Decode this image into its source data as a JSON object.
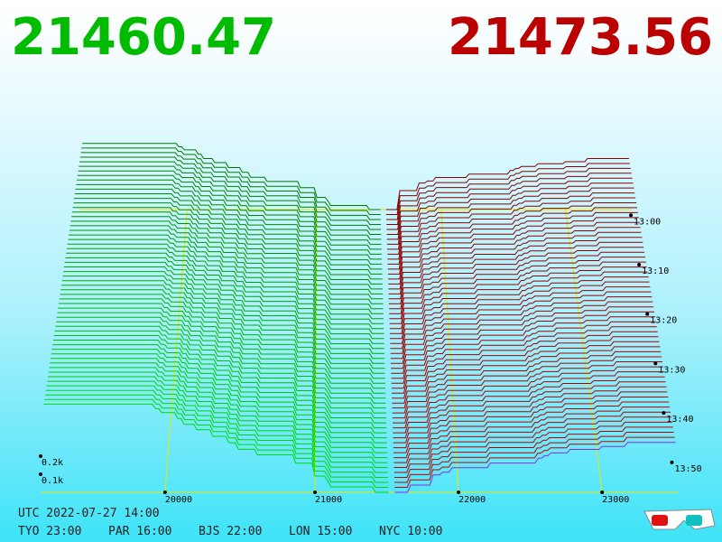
{
  "header": {
    "bid": "21460.47",
    "ask": "21473.56"
  },
  "axes": {
    "price_ticks": [
      "20000",
      "21000",
      "22000",
      "23000"
    ],
    "depth_ticks": [
      "0.1k",
      "0.2k"
    ],
    "time_ticks": [
      "13:00",
      "13:10",
      "13:20",
      "13:30",
      "13:40",
      "13:50"
    ]
  },
  "footer": {
    "utc": "UTC 2022-07-27 14:00",
    "zones": [
      "TYO 23:00",
      "PAR 16:00",
      "BJS 22:00",
      "LON 15:00",
      "NYC 10:00"
    ]
  }
}
